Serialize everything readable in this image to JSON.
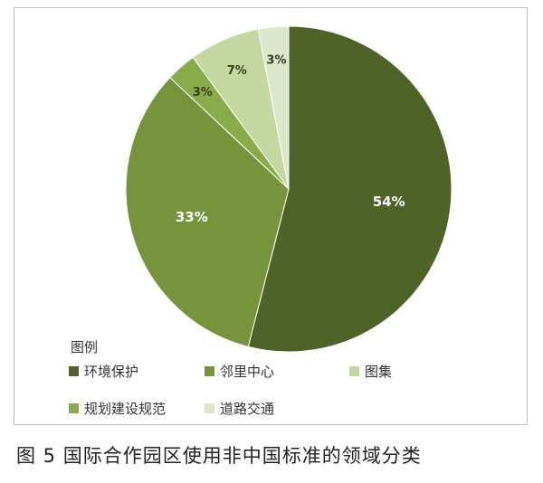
{
  "caption": "图 5   国际合作园区使用非中国标准的领域分类",
  "colors": {
    "slice_1": "#4f6227",
    "slice_2": "#77933c",
    "slice_3": "#8aab4a",
    "slice_4": "#c5d7a0",
    "slice_5": "#dce6c8"
  },
  "chart_data": {
    "type": "pie",
    "legend_title": "图例",
    "legend_position": "bottom",
    "slices": [
      {
        "name": "环境保护",
        "value": 54,
        "label": "54%"
      },
      {
        "name": "邻里中心",
        "value": 33,
        "label": "33%"
      },
      {
        "name": "规划建设规范",
        "value": 3,
        "label": "3%"
      },
      {
        "name": "图集",
        "value": 7,
        "label": "7%"
      },
      {
        "name": "道路交通",
        "value": 3,
        "label": "3%"
      }
    ]
  }
}
